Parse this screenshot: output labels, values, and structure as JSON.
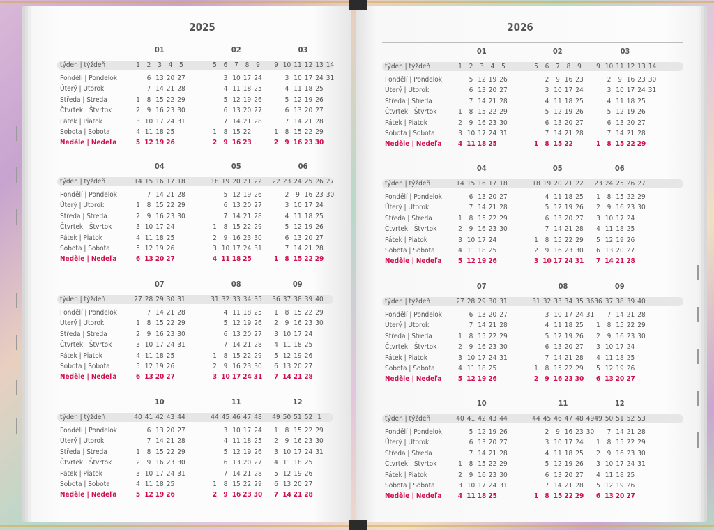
{
  "weekday_labels": [
    "Pondělí | Pondelok",
    "Úterý | Utorok",
    "Středa | Streda",
    "Čtvrtek | Štvrtok",
    "Pátek | Piatok",
    "Sobota | Sobota",
    "Neděle | Nedeľa"
  ],
  "week_label": "týden | týždeň",
  "colors": {
    "sunday": "#d0104c",
    "text": "#555555",
    "band": "#e6e6e6"
  },
  "pages": [
    {
      "year": "2025",
      "months": [
        {
          "name": "01",
          "weeks": [
            1,
            2,
            3,
            4,
            5
          ],
          "rows": [
            "- 6 13 20 27",
            "- 7 14 21 28",
            "1 8 15 22 29",
            "2 9 16 23 30",
            "3 10 17 24 31",
            "4 11 18 25",
            "5 12 19 26"
          ]
        },
        {
          "name": "02",
          "weeks": [
            5,
            6,
            7,
            8,
            9
          ],
          "rows": [
            "- 3 10 17 24",
            "- 4 11 18 25",
            "- 5 12 19 26",
            "- 6 13 20 27",
            "- 7 14 21 28",
            "1 8 15 22",
            "2 9 16 23"
          ]
        },
        {
          "name": "03",
          "weeks": [
            9,
            10,
            11,
            12,
            13,
            14
          ],
          "rows": [
            "- 3 10 17 24 31",
            "- 4 11 18 25",
            "- 5 12 19 26",
            "- 6 13 20 27",
            "- 7 14 21 28",
            "1 8 15 22 29",
            "2 9 16 23 30"
          ]
        },
        {
          "name": "04",
          "weeks": [
            14,
            15,
            16,
            17,
            18
          ],
          "rows": [
            "- 7 14 21 28",
            "1 8 15 22 29",
            "2 9 16 23 30",
            "3 10 17 24",
            "4 11 18 25",
            "5 12 19 26",
            "6 13 20 27"
          ]
        },
        {
          "name": "05",
          "weeks": [
            18,
            19,
            20,
            21,
            22
          ],
          "rows": [
            "- 5 12 19 26",
            "- 6 13 20 27",
            "- 7 14 21 28",
            "1 8 15 22 29",
            "2 9 16 23 30",
            "3 10 17 24 31",
            "4 11 18 25"
          ]
        },
        {
          "name": "06",
          "weeks": [
            22,
            23,
            24,
            25,
            26,
            27
          ],
          "rows": [
            "- 2 9 16 23 30",
            "- 3 10 17 24",
            "- 4 11 18 25",
            "- 5 12 19 26",
            "- 6 13 20 27",
            "- 7 14 21 28",
            "1 8 15 22 29"
          ]
        },
        {
          "name": "07",
          "weeks": [
            27,
            28,
            29,
            30,
            31
          ],
          "rows": [
            "- 7 14 21 28",
            "1 8 15 22 29",
            "2 9 16 23 30",
            "3 10 17 24 31",
            "4 11 18 25",
            "5 12 19 26",
            "6 13 20 27"
          ]
        },
        {
          "name": "08",
          "weeks": [
            31,
            32,
            33,
            34,
            35
          ],
          "rows": [
            "- 4 11 18 25",
            "- 5 12 19 26",
            "- 6 13 20 27",
            "- 7 14 21 28",
            "1 8 15 22 29",
            "2 9 16 23 30",
            "3 10 17 24 31"
          ]
        },
        {
          "name": "09",
          "weeks": [
            36,
            37,
            38,
            39,
            40
          ],
          "rows": [
            "1 8 15 22 29",
            "2 9 16 23 30",
            "3 10 17 24",
            "4 11 18 25",
            "5 12 19 26",
            "6 13 20 27",
            "7 14 21 28"
          ]
        },
        {
          "name": "10",
          "weeks": [
            40,
            41,
            42,
            43,
            44
          ],
          "rows": [
            "- 6 13 20 27",
            "- 7 14 21 28",
            "1 8 15 22 29",
            "2 9 16 23 30",
            "3 10 17 24 31",
            "4 11 18 25",
            "5 12 19 26"
          ]
        },
        {
          "name": "11",
          "weeks": [
            44,
            45,
            46,
            47,
            48
          ],
          "rows": [
            "- 3 10 17 24",
            "- 4 11 18 25",
            "- 5 12 19 26",
            "- 6 13 20 27",
            "- 7 14 21 28",
            "1 8 15 22 29",
            "2 9 16 23 30"
          ]
        },
        {
          "name": "12",
          "weeks": [
            49,
            50,
            51,
            52,
            1
          ],
          "rows": [
            "1 8 15 22 29",
            "2 9 16 23 30",
            "3 10 17 24 31",
            "4 11 18 25",
            "5 12 19 26",
            "6 13 20 27",
            "7 14 21 28"
          ]
        }
      ]
    },
    {
      "year": "2026",
      "months": [
        {
          "name": "01",
          "weeks": [
            1,
            2,
            3,
            4,
            5
          ],
          "rows": [
            "- 5 12 19 26",
            "- 6 13 20 27",
            "- 7 14 21 28",
            "1 8 15 22 29",
            "2 9 16 23 30",
            "3 10 17 24 31",
            "4 11 18 25"
          ]
        },
        {
          "name": "02",
          "weeks": [
            5,
            6,
            7,
            8,
            9
          ],
          "rows": [
            "- 2 9 16 23",
            "- 3 10 17 24",
            "- 4 11 18 25",
            "- 5 12 19 26",
            "- 6 13 20 27",
            "- 7 14 21 28",
            "1 8 15 22"
          ]
        },
        {
          "name": "03",
          "weeks": [
            9,
            10,
            11,
            12,
            13,
            14
          ],
          "rows": [
            "- 2 9 16 23 30",
            "- 3 10 17 24 31",
            "- 4 11 18 25",
            "- 5 12 19 26",
            "- 6 13 20 27",
            "- 7 14 21 28",
            "1 8 15 22 29"
          ]
        },
        {
          "name": "04",
          "weeks": [
            14,
            15,
            16,
            17,
            18
          ],
          "rows": [
            "- 6 13 20 27",
            "- 7 14 21 28",
            "1 8 15 22 29",
            "2 9 16 23 30",
            "3 10 17 24",
            "4 11 18 25",
            "5 12 19 26"
          ]
        },
        {
          "name": "05",
          "weeks": [
            18,
            19,
            20,
            21,
            22
          ],
          "rows": [
            "- 4 11 18 25",
            "- 5 12 19 26",
            "- 6 13 20 27",
            "- 7 14 21 28",
            "1 8 15 22 29",
            "2 9 16 23 30",
            "3 10 17 24 31"
          ]
        },
        {
          "name": "06",
          "weeks": [
            23,
            24,
            25,
            26,
            27
          ],
          "rows": [
            "1 8 15 22 29",
            "2 9 16 23 30",
            "3 10 17 24",
            "4 11 18 25",
            "5 12 19 26",
            "6 13 20 27",
            "7 14 21 28"
          ]
        },
        {
          "name": "07",
          "weeks": [
            27,
            28,
            29,
            30,
            31
          ],
          "rows": [
            "- 6 13 20 27",
            "- 7 14 21 28",
            "1 8 15 22 29",
            "2 9 16 23 30",
            "3 10 17 24 31",
            "4 11 18 25",
            "5 12 19 26"
          ]
        },
        {
          "name": "08",
          "weeks": [
            31,
            32,
            33,
            34,
            35,
            36
          ],
          "rows": [
            "- 3 10 17 24 31",
            "- 4 11 18 25",
            "- 5 12 19 26",
            "- 6 13 20 27",
            "- 7 14 21 28",
            "1 8 15 22 29",
            "2 9 16 23 30"
          ]
        },
        {
          "name": "09",
          "weeks": [
            36,
            37,
            38,
            39,
            40
          ],
          "rows": [
            "- 7 14 21 28",
            "1 8 15 22 29",
            "2 9 16 23 30",
            "3 10 17 24",
            "4 11 18 25",
            "5 12 19 26",
            "6 13 20 27"
          ]
        },
        {
          "name": "10",
          "weeks": [
            40,
            41,
            42,
            43,
            44
          ],
          "rows": [
            "- 5 12 19 26",
            "- 6 13 20 27",
            "- 7 14 21 28",
            "1 8 15 22 29",
            "2 9 16 23 30",
            "3 10 17 24 31",
            "4 11 18 25"
          ]
        },
        {
          "name": "11",
          "weeks": [
            44,
            45,
            46,
            47,
            48,
            49
          ],
          "rows": [
            "- 2 9 16 23 30",
            "- 3 10 17 24",
            "- 4 11 18 25",
            "- 5 12 19 26",
            "- 6 13 20 27",
            "- 7 14 21 28",
            "1 8 15 22 29"
          ]
        },
        {
          "name": "12",
          "weeks": [
            49,
            50,
            51,
            52,
            53
          ],
          "rows": [
            "- 7 14 21 28",
            "1 8 15 22 29",
            "2 9 16 23 30",
            "3 10 17 24 31",
            "4 11 18 25",
            "5 12 19 26",
            "6 13 20 27"
          ]
        }
      ]
    }
  ]
}
